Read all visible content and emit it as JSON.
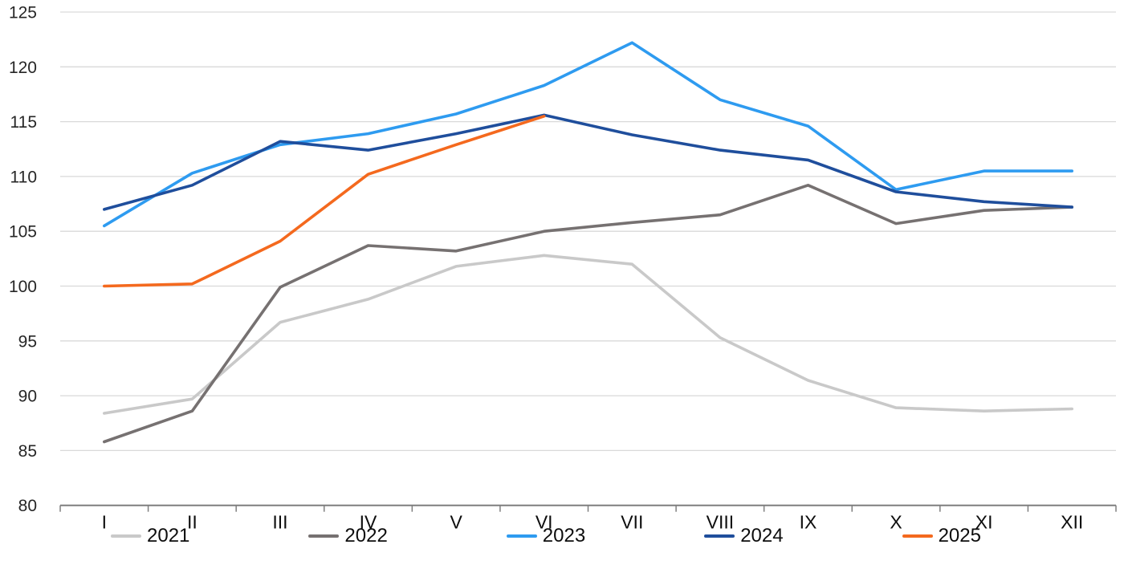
{
  "chart_data": {
    "type": "line",
    "title": "",
    "xlabel": "",
    "ylabel": "",
    "categories": [
      "I",
      "II",
      "III",
      "IV",
      "V",
      "VI",
      "VII",
      "VIII",
      "IX",
      "X",
      "XI",
      "XII"
    ],
    "y_axis": {
      "min": 80,
      "max": 125,
      "step": 5,
      "tick_labels": [
        "80",
        "85",
        "90",
        "95",
        "100",
        "105",
        "110",
        "115",
        "120",
        "125"
      ]
    },
    "grid": true,
    "legend_position": "bottom",
    "series": [
      {
        "name": "2021",
        "color": "#c9c9c9",
        "values": [
          88.4,
          89.7,
          96.7,
          98.8,
          101.8,
          102.8,
          102.0,
          95.3,
          91.4,
          88.9,
          88.6,
          88.8
        ]
      },
      {
        "name": "2022",
        "color": "#767171",
        "values": [
          85.8,
          88.6,
          99.9,
          103.7,
          103.2,
          105.0,
          105.8,
          106.5,
          109.2,
          105.7,
          106.9,
          107.2
        ]
      },
      {
        "name": "2023",
        "color": "#2e9bf0",
        "values": [
          105.5,
          110.3,
          112.9,
          113.9,
          115.7,
          118.3,
          122.2,
          117.0,
          114.6,
          108.8,
          110.5,
          110.5
        ]
      },
      {
        "name": "2024",
        "color": "#1f4e9c",
        "values": [
          107.0,
          109.2,
          113.2,
          112.4,
          113.9,
          115.6,
          113.8,
          112.4,
          111.5,
          108.6,
          107.7,
          107.2
        ]
      },
      {
        "name": "2025",
        "color": "#f4691e",
        "values": [
          100.0,
          100.2,
          104.1,
          110.2,
          112.9,
          115.5
        ]
      }
    ],
    "style_colors": {
      "gridline": "#d9d9d9",
      "axis_line": "#7f7f7f",
      "y_tick_label": "#262626",
      "x_tick_label": "#0d0d0d"
    }
  }
}
